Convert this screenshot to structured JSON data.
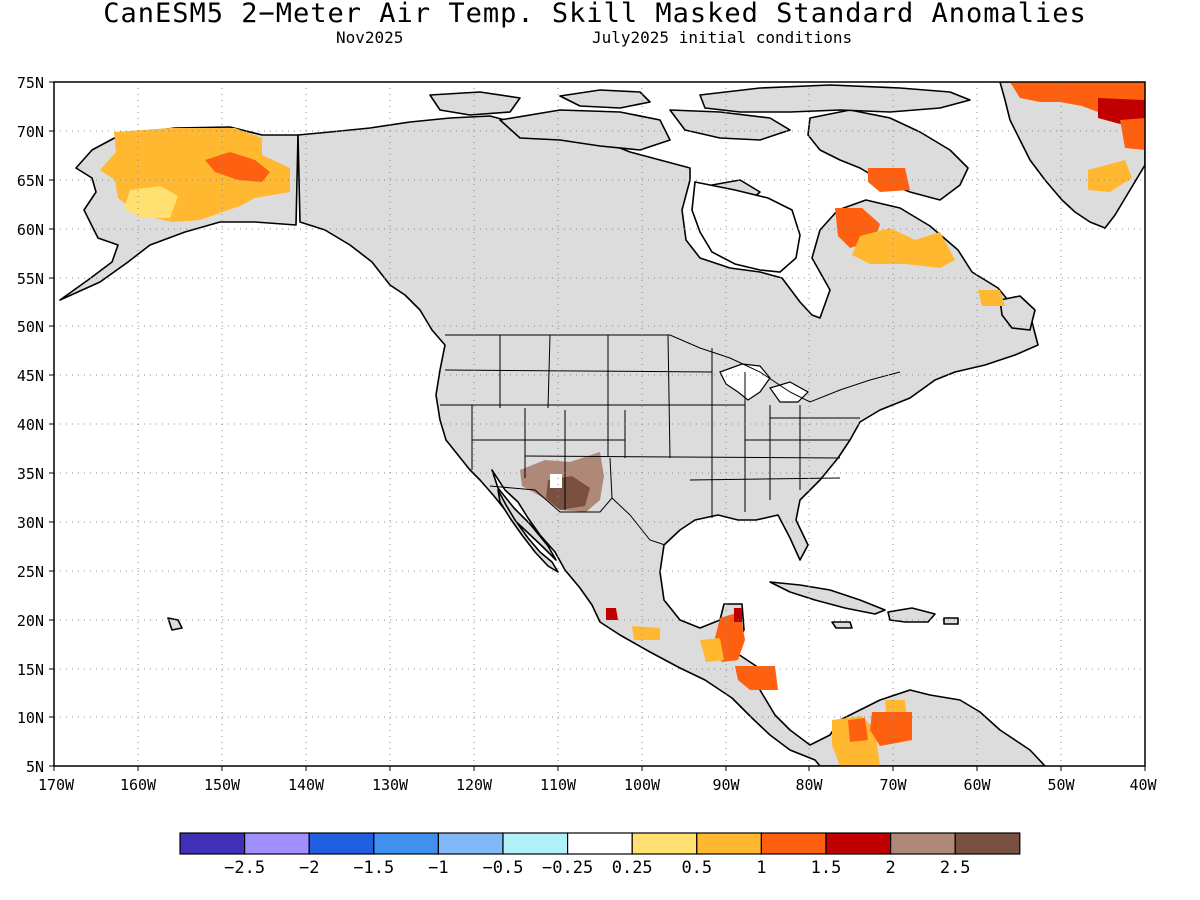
{
  "title": "CanESM5 2−Meter Air Temp. Skill Masked Standard Anomalies",
  "subtitle_left": "Nov2025",
  "subtitle_right": "July2025 initial conditions",
  "map": {
    "lat_ticks": [
      "75N",
      "70N",
      "65N",
      "60N",
      "55N",
      "50N",
      "45N",
      "40N",
      "35N",
      "30N",
      "25N",
      "20N",
      "15N",
      "10N",
      "5N"
    ],
    "lon_ticks": [
      "170W",
      "160W",
      "150W",
      "140W",
      "130W",
      "120W",
      "110W",
      "100W",
      "90W",
      "80W",
      "70W",
      "60W",
      "50W",
      "40W"
    ],
    "land_color": "#dcdcdc",
    "ocean_color": "#ffffff"
  },
  "colorbar": {
    "colors": [
      "#4030b8",
      "#a090ff",
      "#2060e0",
      "#4090f0",
      "#80b8f8",
      "#b0f0f8",
      "#ffffff",
      "#ffe070",
      "#ffb830",
      "#ff6010",
      "#c00000",
      "#b08878",
      "#7a5040"
    ],
    "labels": [
      "−2.5",
      "−2",
      "−1.5",
      "−1",
      "−0.5",
      "−0.25",
      "0.25",
      "0.5",
      "1",
      "1.5",
      "2",
      "2.5"
    ]
  }
}
